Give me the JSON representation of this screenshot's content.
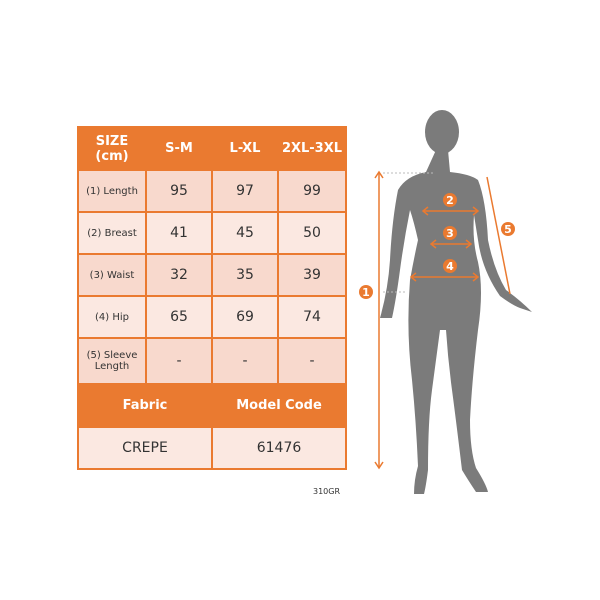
{
  "table": {
    "headers": [
      "SIZE (cm)",
      "S-M",
      "L-XL",
      "2XL-3XL"
    ],
    "rows": [
      {
        "label": "(1) Length",
        "values": [
          "95",
          "97",
          "99"
        ]
      },
      {
        "label": "(2) Breast",
        "values": [
          "41",
          "45",
          "50"
        ]
      },
      {
        "label": "(3) Waist",
        "values": [
          "32",
          "35",
          "39"
        ]
      },
      {
        "label": "(4) Hip",
        "values": [
          "65",
          "69",
          "74"
        ]
      },
      {
        "label": "(5) Sleeve Length",
        "values": [
          "-",
          "-",
          "-"
        ]
      }
    ],
    "fabric_header": "Fabric",
    "model_header": "Model Code",
    "fabric": "CREPE",
    "model_code": "61476"
  },
  "product_code": "310GR",
  "figure": {
    "markers": [
      "1",
      "2",
      "3",
      "4",
      "5"
    ]
  },
  "colors": {
    "accent": "#ea7a30",
    "silhouette": "#7b7b7b"
  }
}
